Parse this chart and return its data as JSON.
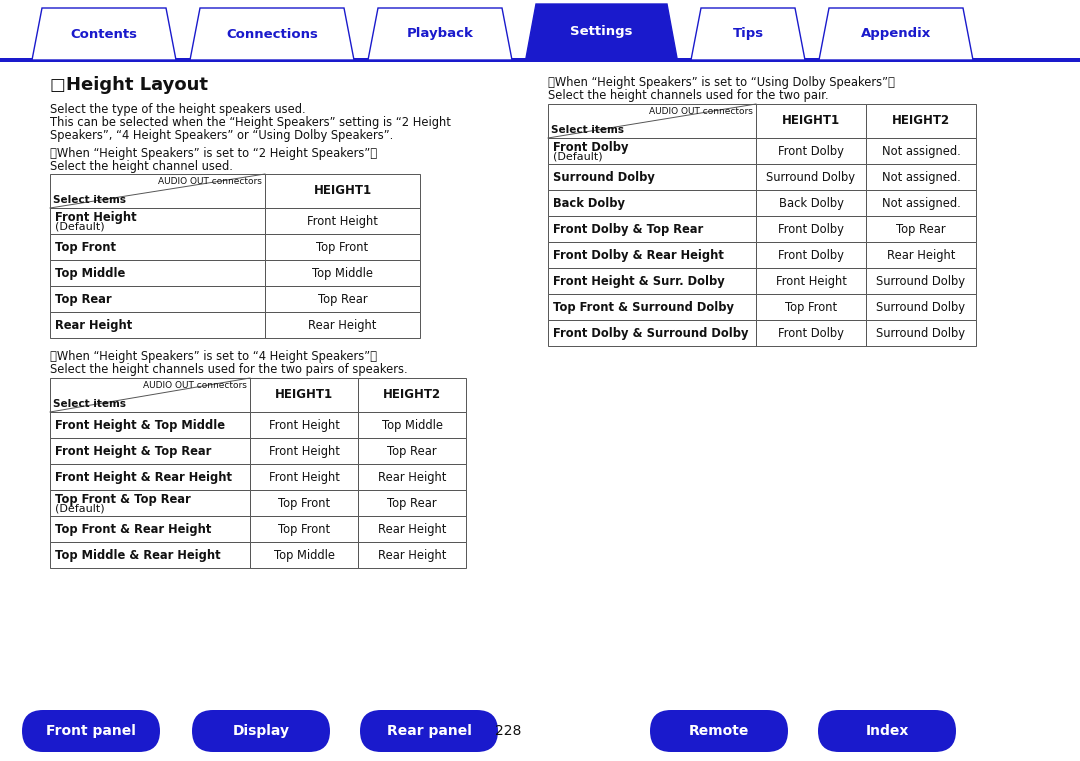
{
  "title": "Height Layout",
  "bg_color": "#ffffff",
  "tab_items": [
    "Contents",
    "Connections",
    "Playback",
    "Settings",
    "Tips",
    "Appendix"
  ],
  "active_tab": "Settings",
  "tab_color_active": "#1a1acc",
  "tab_color_inactive": "#ffffff",
  "tab_text_color_active": "#ffffff",
  "tab_text_color_inactive": "#1a1acc",
  "tab_border_color": "#1a1acc",
  "bottom_buttons": [
    "Front panel",
    "Display",
    "Rear panel",
    "Remote",
    "Index"
  ],
  "bottom_btn_color": "#1a1acc",
  "bottom_btn_text_color": "#ffffff",
  "page_number": "228",
  "left_col_header_note1": "【When “Height Speakers” is set to “2 Height Speakers”】",
  "left_col_header_note2": "Select the height channel used.",
  "table1_header_right": "AUDIO OUT connectors",
  "table1_header_left": "Select items",
  "table1_col2": "HEIGHT1",
  "table1_rows": [
    [
      "Front Height\n(Default)",
      "Front Height"
    ],
    [
      "Top Front",
      "Top Front"
    ],
    [
      "Top Middle",
      "Top Middle"
    ],
    [
      "Top Rear",
      "Top Rear"
    ],
    [
      "Rear Height",
      "Rear Height"
    ]
  ],
  "left_col_note3": "【When “Height Speakers” is set to “4 Height Speakers”】",
  "left_col_note4": "Select the height channels used for the two pairs of speakers.",
  "table2_col2": "HEIGHT1",
  "table2_col3": "HEIGHT2",
  "table2_rows": [
    [
      "Front Height & Top Middle",
      "Front Height",
      "Top Middle"
    ],
    [
      "Front Height & Top Rear",
      "Front Height",
      "Top Rear"
    ],
    [
      "Front Height & Rear Height",
      "Front Height",
      "Rear Height"
    ],
    [
      "Top Front & Top Rear\n(Default)",
      "Top Front",
      "Top Rear"
    ],
    [
      "Top Front & Rear Height",
      "Top Front",
      "Rear Height"
    ],
    [
      "Top Middle & Rear Height",
      "Top Middle",
      "Rear Height"
    ]
  ],
  "right_col_header_note1": "【When “Height Speakers” is set to “Using Dolby Speakers”】",
  "right_col_header_note2": "Select the height channels used for the two pair.",
  "table3_col2": "HEIGHT1",
  "table3_col3": "HEIGHT2",
  "table3_rows": [
    [
      "Front Dolby\n(Default)",
      "Front Dolby",
      "Not assigned."
    ],
    [
      "Surround Dolby",
      "Surround Dolby",
      "Not assigned."
    ],
    [
      "Back Dolby",
      "Back Dolby",
      "Not assigned."
    ],
    [
      "Front Dolby & Top Rear",
      "Front Dolby",
      "Top Rear"
    ],
    [
      "Front Dolby & Rear Height",
      "Front Dolby",
      "Rear Height"
    ],
    [
      "Front Height & Surr. Dolby",
      "Front Height",
      "Surround Dolby"
    ],
    [
      "Top Front & Surround Dolby",
      "Top Front",
      "Surround Dolby"
    ],
    [
      "Front Dolby & Surround Dolby",
      "Front Dolby",
      "Surround Dolby"
    ]
  ],
  "body_text1": "Select the type of the height speakers used.",
  "body_text2a": "This can be selected when the “Height Speakers” setting is “2 Height",
  "body_text2b": "Speakers”, “4 Height Speakers” or “Using Dolby Speakers”."
}
